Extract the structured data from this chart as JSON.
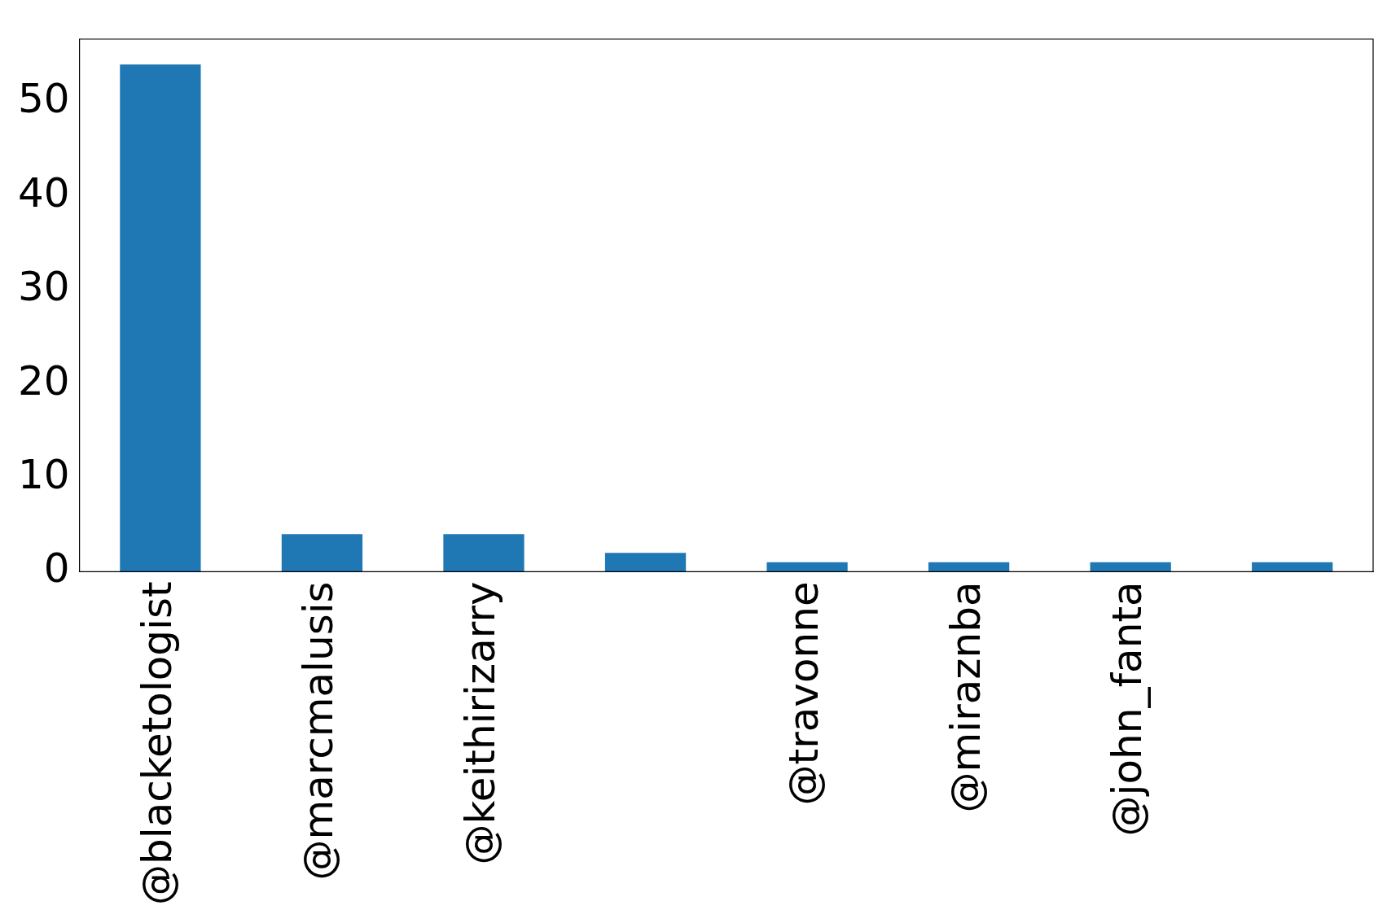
{
  "chart_data": {
    "type": "bar",
    "categories": [
      "@blacketologist",
      "@marcmalusis",
      "@keithirizarry",
      null,
      "@travonne",
      "@miraznba",
      "@john_fanta",
      null
    ],
    "values": [
      54,
      4,
      4,
      2,
      1,
      1,
      1,
      1
    ],
    "color": "#1f77b4",
    "ylim": [
      0,
      56.7
    ],
    "yticks": [
      0,
      10,
      20,
      30,
      40,
      50
    ],
    "grid": false,
    "legend": false
  }
}
